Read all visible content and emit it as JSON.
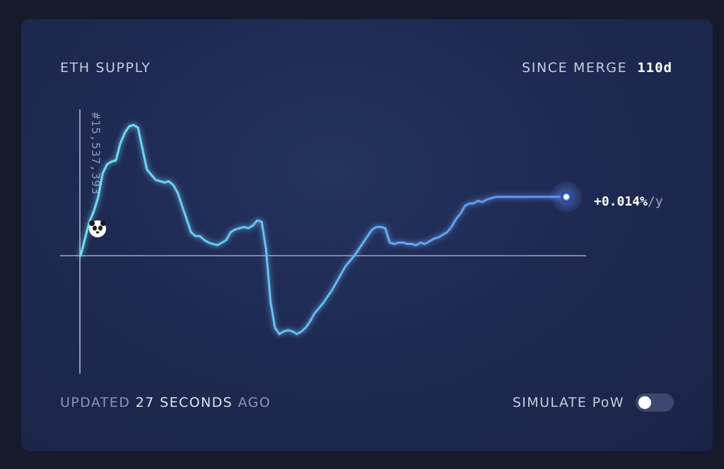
{
  "header": {
    "title": "ETH SUPPLY",
    "since_label": "SINCE MERGE",
    "since_value": "110d"
  },
  "chart_data": {
    "type": "line",
    "block_label": "#15,537,393",
    "rate_value": "+0.014%",
    "rate_unit": "/y",
    "baseline": 0,
    "ylim": [
      -1.0,
      1.0
    ],
    "x": [
      0,
      1,
      2,
      3,
      4,
      5,
      6,
      7,
      8,
      9,
      10,
      11,
      12,
      13,
      14,
      15,
      16,
      17,
      18,
      19,
      20,
      21,
      22,
      23,
      24,
      25,
      26,
      27,
      28,
      29,
      30,
      31,
      32,
      33,
      34,
      35,
      36,
      37,
      38,
      39,
      40,
      41,
      42,
      43,
      44,
      45,
      46,
      47,
      48,
      49,
      50,
      51,
      52,
      53,
      54,
      55,
      56,
      57,
      58,
      59,
      60,
      61,
      62,
      63,
      64,
      65,
      66,
      67,
      68,
      69,
      70,
      71,
      72,
      73,
      74,
      75,
      76,
      77,
      78,
      79,
      80,
      81,
      82,
      83,
      84,
      85,
      86,
      87,
      88,
      89,
      90,
      91,
      92,
      93,
      94,
      95,
      96,
      97,
      98,
      99,
      100,
      101,
      102,
      103,
      104,
      105,
      106,
      107,
      108,
      109,
      110
    ],
    "values": [
      0.0,
      0.13,
      0.26,
      0.34,
      0.45,
      0.63,
      0.7,
      0.72,
      0.73,
      0.86,
      0.94,
      0.99,
      1.0,
      0.98,
      0.82,
      0.66,
      0.62,
      0.58,
      0.57,
      0.56,
      0.57,
      0.54,
      0.48,
      0.38,
      0.28,
      0.18,
      0.15,
      0.15,
      0.12,
      0.1,
      0.09,
      0.08,
      0.1,
      0.12,
      0.18,
      0.2,
      0.21,
      0.22,
      0.21,
      0.23,
      0.27,
      0.26,
      0.05,
      -0.35,
      -0.55,
      -0.6,
      -0.58,
      -0.57,
      -0.58,
      -0.6,
      -0.58,
      -0.55,
      -0.5,
      -0.44,
      -0.4,
      -0.36,
      -0.31,
      -0.26,
      -0.2,
      -0.14,
      -0.08,
      -0.04,
      0.0,
      0.05,
      0.1,
      0.15,
      0.2,
      0.22,
      0.22,
      0.21,
      0.1,
      0.09,
      0.1,
      0.1,
      0.09,
      0.09,
      0.08,
      0.1,
      0.09,
      0.11,
      0.13,
      0.14,
      0.16,
      0.18,
      0.22,
      0.28,
      0.32,
      0.38,
      0.4,
      0.4,
      0.42,
      0.41,
      0.43,
      0.44,
      0.45,
      0.45,
      0.45,
      0.45,
      0.45,
      0.45,
      0.45,
      0.45,
      0.45,
      0.45,
      0.45,
      0.45,
      0.45,
      0.45,
      0.45,
      0.45,
      0.45
    ]
  },
  "footer": {
    "updated_prefix": "UPDATED",
    "updated_value": "27 SECONDS",
    "updated_suffix": "AGO",
    "simulate_label": "SIMULATE PoW",
    "simulate_on": false
  },
  "colors": {
    "line_start": "#6fe0f4",
    "line_end": "#5f8df0",
    "axis": "#b8c0d8"
  }
}
